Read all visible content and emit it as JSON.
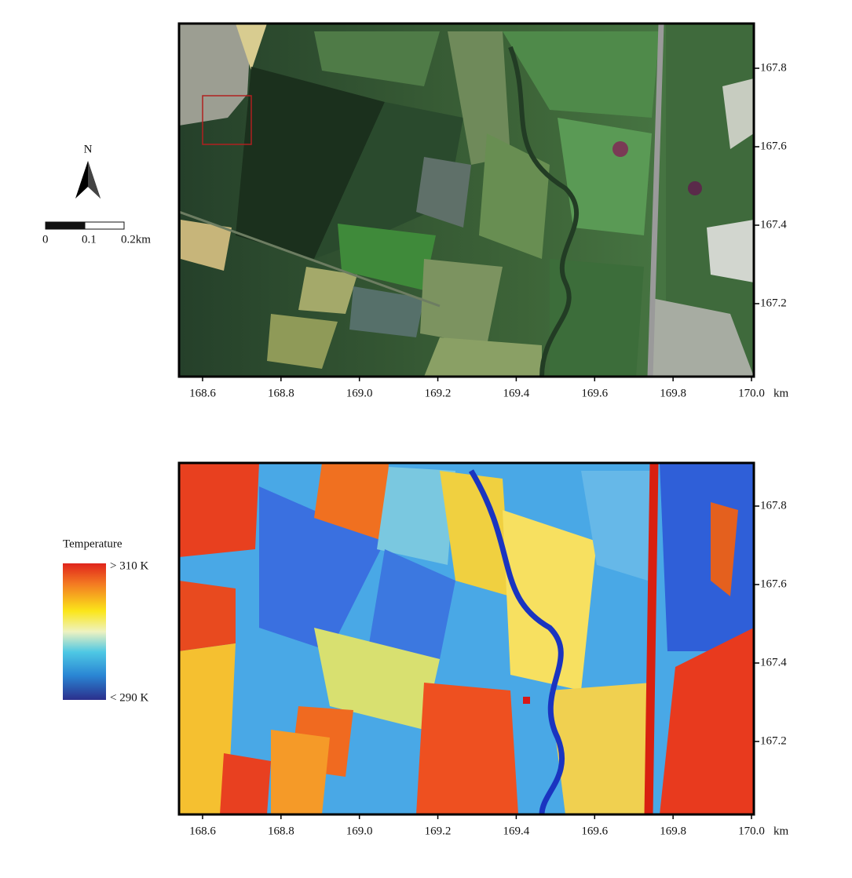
{
  "maps": [
    {
      "xlim": [
        168.54,
        170.006
      ],
      "ylim": [
        167.014,
        167.914
      ],
      "xticks": [
        168.6,
        168.8,
        {
          "value": 169,
          "label": "169.0"
        },
        169.2,
        169.4,
        169.6,
        169.8,
        {
          "value": 170,
          "label": "170.0"
        }
      ],
      "yticks": [
        167.2,
        167.4,
        167.6,
        167.8
      ],
      "x_unit": "km"
    },
    {
      "xlim": [
        168.54,
        170.006
      ],
      "ylim": [
        167.014,
        167.91
      ],
      "xticks": [
        168.6,
        168.8,
        {
          "value": 169,
          "label": "169.0"
        },
        169.2,
        169.4,
        169.6,
        169.8,
        {
          "value": 170,
          "label": "170.0"
        }
      ],
      "yticks": [
        167.2,
        167.4,
        167.6,
        167.8
      ],
      "x_unit": "km"
    }
  ],
  "north_arrow": "N",
  "scale_bar": {
    "ticks": [
      0,
      0.1,
      {
        "value": 0.2,
        "label": "0.2km"
      }
    ]
  },
  "legend": {
    "title": "Temperature",
    "high": "> 310 K",
    "low": "< 290 K"
  }
}
